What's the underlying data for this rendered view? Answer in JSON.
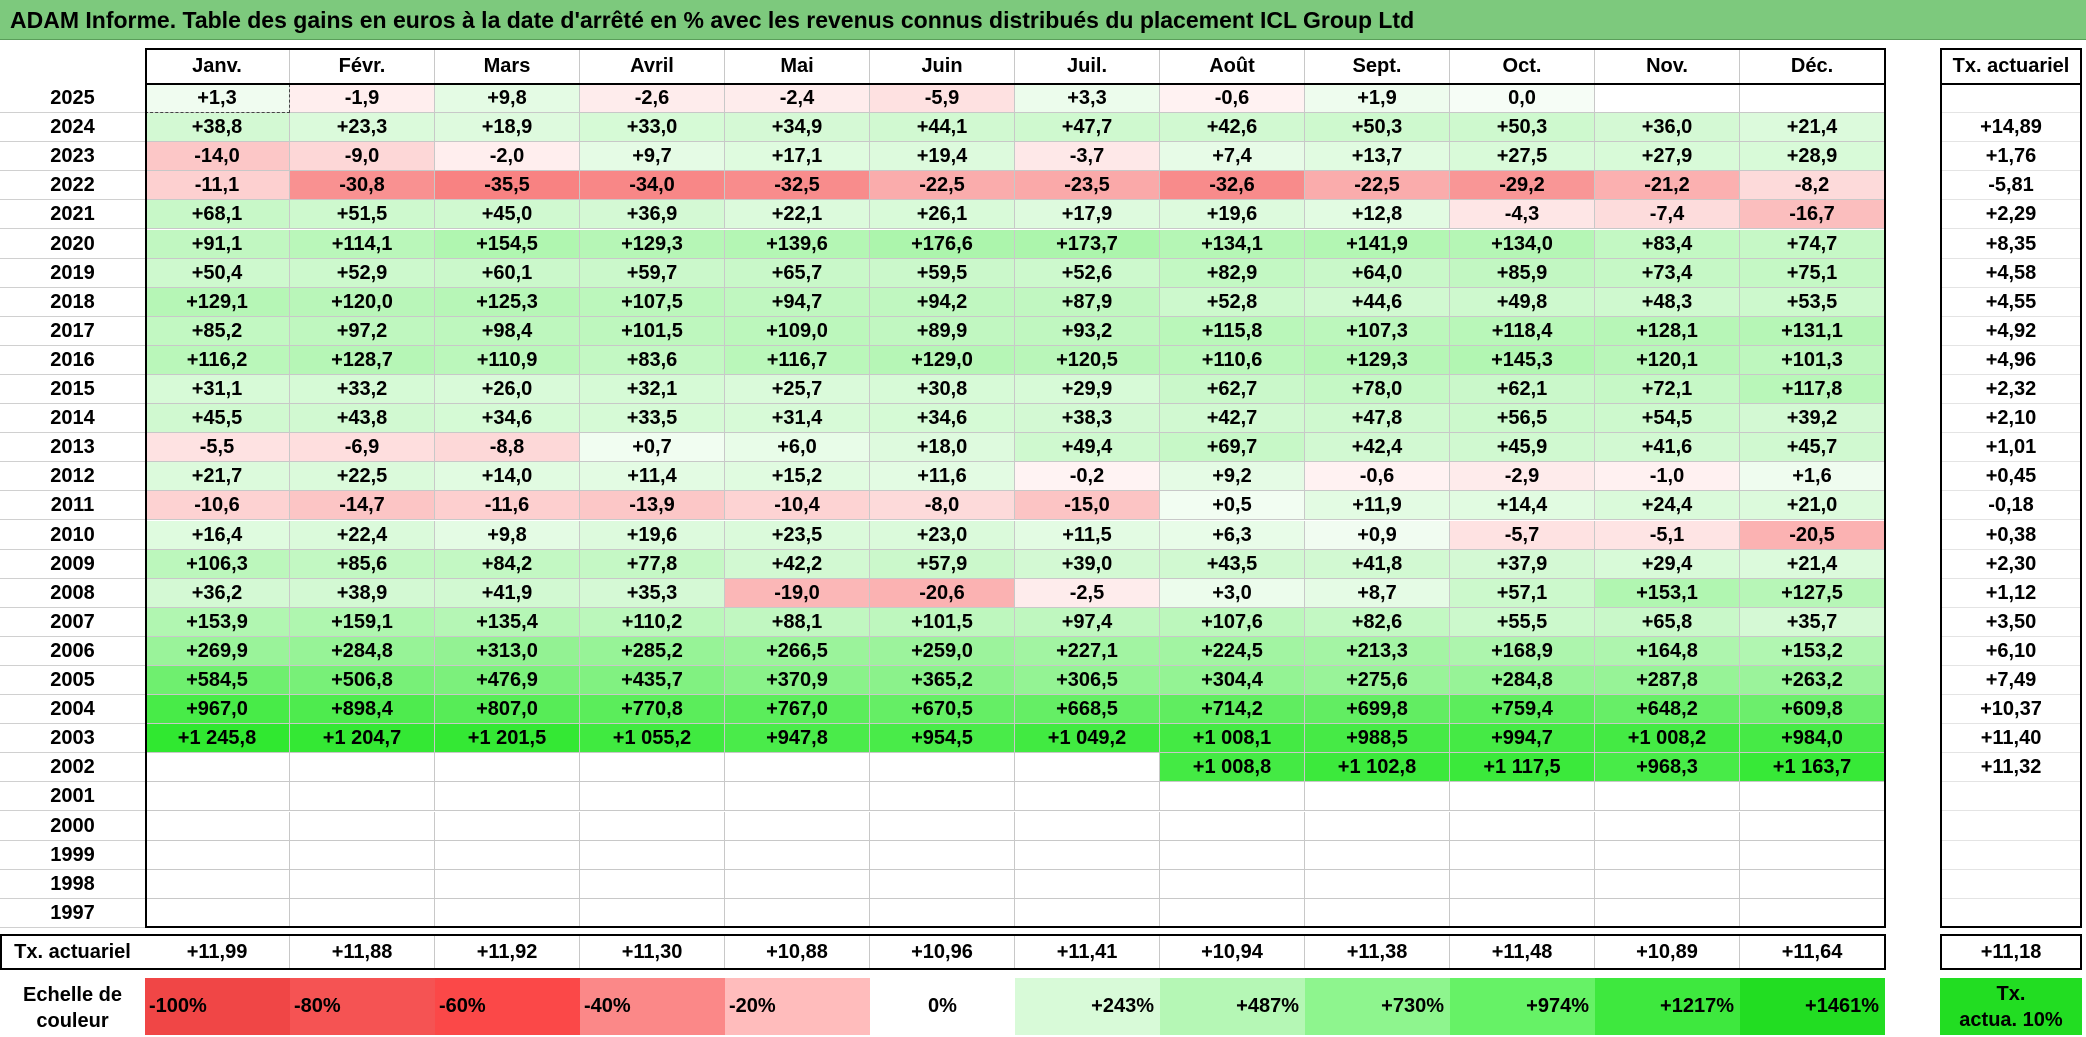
{
  "title": "ADAM Informe. Table des gains en euros à la date d'arrêté en % avec les revenus connus distribués du placement ICL Group Ltd",
  "chart_data": {
    "type": "heatmap",
    "title": "ADAM Informe. Table des gains en euros à la date d'arrêté en % avec les revenus connus distribués du placement ICL Group Ltd",
    "months": [
      "Janv.",
      "Févr.",
      "Mars",
      "Avril",
      "Mai",
      "Juin",
      "Juil.",
      "Août",
      "Sept.",
      "Oct.",
      "Nov.",
      "Déc."
    ],
    "rate_header": "Tx. actuariel",
    "rows": [
      {
        "year": "2025",
        "values": [
          "+1,3",
          "-1,9",
          "+9,8",
          "-2,6",
          "-2,4",
          "-5,9",
          "+3,3",
          "-0,6",
          "+1,9",
          "0,0",
          "",
          ""
        ],
        "rate": ""
      },
      {
        "year": "2024",
        "values": [
          "+38,8",
          "+23,3",
          "+18,9",
          "+33,0",
          "+34,9",
          "+44,1",
          "+47,7",
          "+42,6",
          "+50,3",
          "+50,3",
          "+36,0",
          "+21,4"
        ],
        "rate": "+14,89"
      },
      {
        "year": "2023",
        "values": [
          "-14,0",
          "-9,0",
          "-2,0",
          "+9,7",
          "+17,1",
          "+19,4",
          "-3,7",
          "+7,4",
          "+13,7",
          "+27,5",
          "+27,9",
          "+28,9"
        ],
        "rate": "+1,76"
      },
      {
        "year": "2022",
        "values": [
          "-11,1",
          "-30,8",
          "-35,5",
          "-34,0",
          "-32,5",
          "-22,5",
          "-23,5",
          "-32,6",
          "-22,5",
          "-29,2",
          "-21,2",
          "-8,2"
        ],
        "rate": "-5,81"
      },
      {
        "year": "2021",
        "values": [
          "+68,1",
          "+51,5",
          "+45,0",
          "+36,9",
          "+22,1",
          "+26,1",
          "+17,9",
          "+19,6",
          "+12,8",
          "-4,3",
          "-7,4",
          "-16,7"
        ],
        "rate": "+2,29"
      },
      {
        "year": "2020",
        "values": [
          "+91,1",
          "+114,1",
          "+154,5",
          "+129,3",
          "+139,6",
          "+176,6",
          "+173,7",
          "+134,1",
          "+141,9",
          "+134,0",
          "+83,4",
          "+74,7"
        ],
        "rate": "+8,35"
      },
      {
        "year": "2019",
        "values": [
          "+50,4",
          "+52,9",
          "+60,1",
          "+59,7",
          "+65,7",
          "+59,5",
          "+52,6",
          "+82,9",
          "+64,0",
          "+85,9",
          "+73,4",
          "+75,1"
        ],
        "rate": "+4,58"
      },
      {
        "year": "2018",
        "values": [
          "+129,1",
          "+120,0",
          "+125,3",
          "+107,5",
          "+94,7",
          "+94,2",
          "+87,9",
          "+52,8",
          "+44,6",
          "+49,8",
          "+48,3",
          "+53,5"
        ],
        "rate": "+4,55"
      },
      {
        "year": "2017",
        "values": [
          "+85,2",
          "+97,2",
          "+98,4",
          "+101,5",
          "+109,0",
          "+89,9",
          "+93,2",
          "+115,8",
          "+107,3",
          "+118,4",
          "+128,1",
          "+131,1"
        ],
        "rate": "+4,92"
      },
      {
        "year": "2016",
        "values": [
          "+116,2",
          "+128,7",
          "+110,9",
          "+83,6",
          "+116,7",
          "+129,0",
          "+120,5",
          "+110,6",
          "+129,3",
          "+145,3",
          "+120,1",
          "+101,3"
        ],
        "rate": "+4,96"
      },
      {
        "year": "2015",
        "values": [
          "+31,1",
          "+33,2",
          "+26,0",
          "+32,1",
          "+25,7",
          "+30,8",
          "+29,9",
          "+62,7",
          "+78,0",
          "+62,1",
          "+72,1",
          "+117,8"
        ],
        "rate": "+2,32"
      },
      {
        "year": "2014",
        "values": [
          "+45,5",
          "+43,8",
          "+34,6",
          "+33,5",
          "+31,4",
          "+34,6",
          "+38,3",
          "+42,7",
          "+47,8",
          "+56,5",
          "+54,5",
          "+39,2"
        ],
        "rate": "+2,10"
      },
      {
        "year": "2013",
        "values": [
          "-5,5",
          "-6,9",
          "-8,8",
          "+0,7",
          "+6,0",
          "+18,0",
          "+49,4",
          "+69,7",
          "+42,4",
          "+45,9",
          "+41,6",
          "+45,7"
        ],
        "rate": "+1,01"
      },
      {
        "year": "2012",
        "values": [
          "+21,7",
          "+22,5",
          "+14,0",
          "+11,4",
          "+15,2",
          "+11,6",
          "-0,2",
          "+9,2",
          "-0,6",
          "-2,9",
          "-1,0",
          "+1,6"
        ],
        "rate": "+0,45"
      },
      {
        "year": "2011",
        "values": [
          "-10,6",
          "-14,7",
          "-11,6",
          "-13,9",
          "-10,4",
          "-8,0",
          "-15,0",
          "+0,5",
          "+11,9",
          "+14,4",
          "+24,4",
          "+21,0"
        ],
        "rate": "-0,18"
      },
      {
        "year": "2010",
        "values": [
          "+16,4",
          "+22,4",
          "+9,8",
          "+19,6",
          "+23,5",
          "+23,0",
          "+11,5",
          "+6,3",
          "+0,9",
          "-5,7",
          "-5,1",
          "-20,5"
        ],
        "rate": "+0,38"
      },
      {
        "year": "2009",
        "values": [
          "+106,3",
          "+85,6",
          "+84,2",
          "+77,8",
          "+42,2",
          "+57,9",
          "+39,0",
          "+43,5",
          "+41,8",
          "+37,9",
          "+29,4",
          "+21,4"
        ],
        "rate": "+2,30"
      },
      {
        "year": "2008",
        "values": [
          "+36,2",
          "+38,9",
          "+41,9",
          "+35,3",
          "-19,0",
          "-20,6",
          "-2,5",
          "+3,0",
          "+8,7",
          "+57,1",
          "+153,1",
          "+127,5"
        ],
        "rate": "+1,12"
      },
      {
        "year": "2007",
        "values": [
          "+153,9",
          "+159,1",
          "+135,4",
          "+110,2",
          "+88,1",
          "+101,5",
          "+97,4",
          "+107,6",
          "+82,6",
          "+55,5",
          "+65,8",
          "+35,7"
        ],
        "rate": "+3,50"
      },
      {
        "year": "2006",
        "values": [
          "+269,9",
          "+284,8",
          "+313,0",
          "+285,2",
          "+266,5",
          "+259,0",
          "+227,1",
          "+224,5",
          "+213,3",
          "+168,9",
          "+164,8",
          "+153,2"
        ],
        "rate": "+6,10"
      },
      {
        "year": "2005",
        "values": [
          "+584,5",
          "+506,8",
          "+476,9",
          "+435,7",
          "+370,9",
          "+365,2",
          "+306,5",
          "+304,4",
          "+275,6",
          "+284,8",
          "+287,8",
          "+263,2"
        ],
        "rate": "+7,49"
      },
      {
        "year": "2004",
        "values": [
          "+967,0",
          "+898,4",
          "+807,0",
          "+770,8",
          "+767,0",
          "+670,5",
          "+668,5",
          "+714,2",
          "+699,8",
          "+759,4",
          "+648,2",
          "+609,8"
        ],
        "rate": "+10,37"
      },
      {
        "year": "2003",
        "values": [
          "+1 245,8",
          "+1 204,7",
          "+1 201,5",
          "+1 055,2",
          "+947,8",
          "+954,5",
          "+1 049,2",
          "+1 008,1",
          "+988,5",
          "+994,7",
          "+1 008,2",
          "+984,0"
        ],
        "rate": "+11,40"
      },
      {
        "year": "2002",
        "values": [
          "",
          "",
          "",
          "",
          "",
          "",
          "",
          "+1 008,8",
          "+1 102,8",
          "+1 117,5",
          "+968,3",
          "+1 163,7"
        ],
        "rate": "+11,32"
      },
      {
        "year": "2001",
        "values": [
          "",
          "",
          "",
          "",
          "",
          "",
          "",
          "",
          "",
          "",
          "",
          ""
        ],
        "rate": ""
      },
      {
        "year": "2000",
        "values": [
          "",
          "",
          "",
          "",
          "",
          "",
          "",
          "",
          "",
          "",
          "",
          ""
        ],
        "rate": ""
      },
      {
        "year": "1999",
        "values": [
          "",
          "",
          "",
          "",
          "",
          "",
          "",
          "",
          "",
          "",
          "",
          ""
        ],
        "rate": ""
      },
      {
        "year": "1998",
        "values": [
          "",
          "",
          "",
          "",
          "",
          "",
          "",
          "",
          "",
          "",
          "",
          ""
        ],
        "rate": ""
      },
      {
        "year": "1997",
        "values": [
          "",
          "",
          "",
          "",
          "",
          "",
          "",
          "",
          "",
          "",
          "",
          ""
        ],
        "rate": ""
      }
    ],
    "footer_label": "Tx. actuariel",
    "footer_values": [
      "+11,99",
      "+11,88",
      "+11,92",
      "+11,30",
      "+10,88",
      "+10,96",
      "+11,41",
      "+10,94",
      "+11,38",
      "+11,48",
      "+10,89",
      "+11,64"
    ],
    "footer_rate": "+11,18",
    "scale_label_1": "Echelle de",
    "scale_label_2": "couleur",
    "scale": [
      "-100%",
      "-80%",
      "-60%",
      "-40%",
      "-20%",
      "0%",
      "+243%",
      "+487%",
      "+730%",
      "+974%",
      "+1217%",
      "+1461%"
    ],
    "scale_values": [
      -100,
      -80,
      -60,
      -40,
      -20,
      0,
      243,
      487,
      730,
      974,
      1217,
      1461
    ],
    "scale_colors": [
      "#f04646",
      "#f55353",
      "#fb4848",
      "#fb8888",
      "#ffbcbc",
      "#ffffff",
      "#d8fad8",
      "#b5f7b5",
      "#8ef58e",
      "#66f266",
      "#3ee83e",
      "#22dd22"
    ],
    "rate_scale_label_1": "Tx.",
    "rate_scale_label_2": "actua. 10%",
    "rate_scale_color": "#22dd22"
  }
}
